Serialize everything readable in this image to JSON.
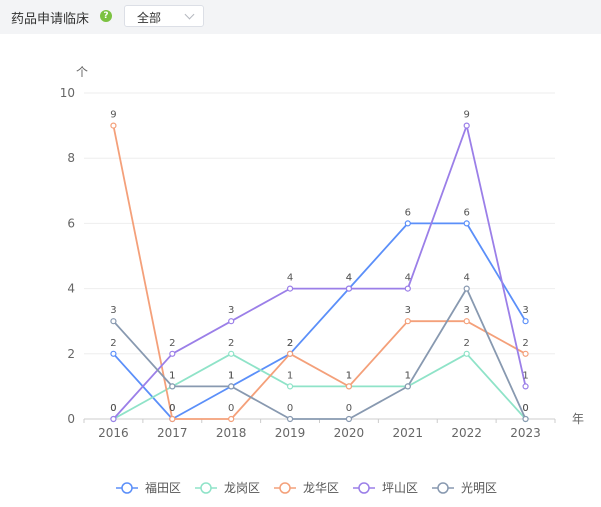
{
  "header": {
    "title": "药品申请临床",
    "help_icon": "question-circle-icon",
    "select": {
      "value": "全部",
      "icon": "chevron-down-icon"
    }
  },
  "colors": {
    "header_bg": "#f3f4f6",
    "help_icon": "#7cc242",
    "grid": "#eeeeee",
    "axis": "#cccccc"
  },
  "chart_data": {
    "type": "line",
    "title": "",
    "xlabel": "年",
    "ylabel": "个",
    "ylim": [
      0,
      10
    ],
    "yticks": [
      0,
      2,
      4,
      6,
      8,
      10
    ],
    "categories": [
      "2016",
      "2017",
      "2018",
      "2019",
      "2020",
      "2021",
      "2022",
      "2023"
    ],
    "grid": true,
    "legend_position": "bottom-center",
    "series": [
      {
        "name": "福田区",
        "color": "#5b8ff9",
        "values": [
          2,
          0,
          1,
          2,
          4,
          6,
          6,
          3
        ]
      },
      {
        "name": "龙岗区",
        "color": "#8fe3c8",
        "values": [
          0,
          1,
          2,
          1,
          1,
          1,
          2,
          0
        ]
      },
      {
        "name": "龙华区",
        "color": "#f4a07a",
        "values": [
          9,
          0,
          0,
          2,
          1,
          3,
          3,
          2
        ]
      },
      {
        "name": "坪山区",
        "color": "#9b7fe8",
        "values": [
          0,
          2,
          3,
          4,
          4,
          4,
          9,
          1
        ]
      },
      {
        "name": "光明区",
        "color": "#8899b0",
        "values": [
          3,
          1,
          1,
          0,
          0,
          1,
          4,
          0
        ]
      }
    ]
  }
}
